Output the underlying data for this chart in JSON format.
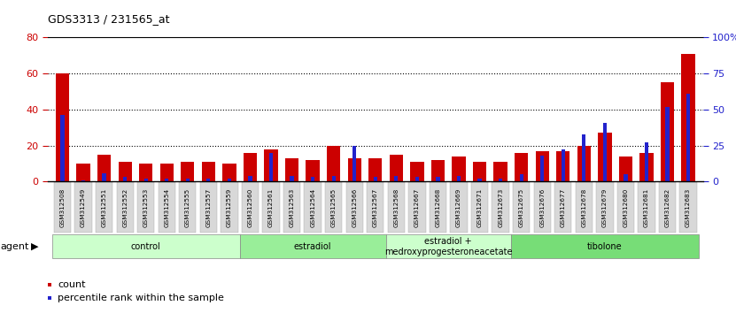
{
  "title": "GDS3313 / 231565_at",
  "samples": [
    "GSM312508",
    "GSM312549",
    "GSM312551",
    "GSM312552",
    "GSM312553",
    "GSM312554",
    "GSM312555",
    "GSM312557",
    "GSM312559",
    "GSM312560",
    "GSM312561",
    "GSM312563",
    "GSM312564",
    "GSM312565",
    "GSM312566",
    "GSM312567",
    "GSM312568",
    "GSM312667",
    "GSM312668",
    "GSM312669",
    "GSM312671",
    "GSM312673",
    "GSM312675",
    "GSM312676",
    "GSM312677",
    "GSM312678",
    "GSM312679",
    "GSM312680",
    "GSM312681",
    "GSM312682",
    "GSM312683"
  ],
  "count_values": [
    60,
    10,
    15,
    11,
    10,
    10,
    11,
    11,
    10,
    16,
    18,
    13,
    12,
    20,
    13,
    13,
    15,
    11,
    12,
    14,
    11,
    11,
    16,
    17,
    17,
    20,
    27,
    14,
    16,
    55,
    71
  ],
  "percentile_values": [
    46,
    1,
    6,
    3,
    2,
    2,
    2,
    2,
    2,
    4,
    20,
    4,
    3,
    4,
    25,
    3,
    4,
    3,
    3,
    4,
    2,
    2,
    5,
    18,
    22,
    33,
    41,
    5,
    27,
    52,
    61
  ],
  "count_color": "#cc0000",
  "percentile_color": "#2222cc",
  "groups": [
    {
      "label": "control",
      "start": 0,
      "end": 9,
      "color": "#ccffcc"
    },
    {
      "label": "estradiol",
      "start": 9,
      "end": 16,
      "color": "#99ee99"
    },
    {
      "label": "estradiol +\nmedroxyprogesteroneacetate",
      "start": 16,
      "end": 22,
      "color": "#ccffcc"
    },
    {
      "label": "tibolone",
      "start": 22,
      "end": 31,
      "color": "#77dd77"
    }
  ],
  "ylim_left": [
    0,
    80
  ],
  "ylim_right": [
    0,
    100
  ],
  "yticks_left": [
    0,
    20,
    40,
    60,
    80
  ],
  "yticks_right": [
    0,
    25,
    50,
    75,
    100
  ],
  "ytick_labels_right": [
    "0",
    "25",
    "50",
    "75",
    "100%"
  ],
  "background_color": "#ffffff",
  "agent_label": "agent",
  "legend_count": "count",
  "legend_pct": "percentile rank within the sample"
}
